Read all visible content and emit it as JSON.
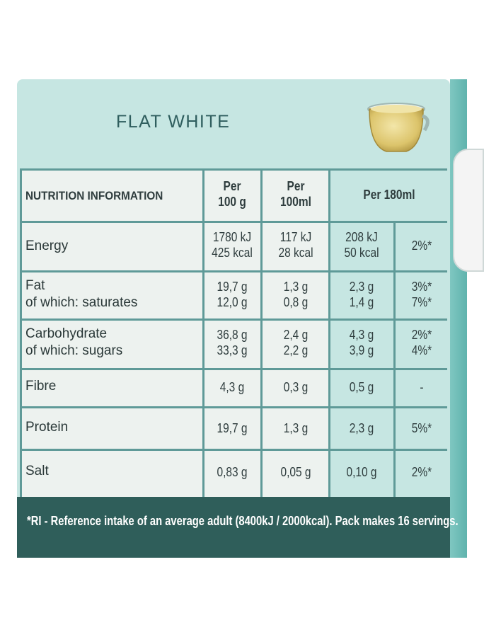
{
  "product": {
    "title": "FLAT WHITE"
  },
  "header": {
    "section": "NUTRITION INFORMATION",
    "col1": [
      "Per",
      "100 g"
    ],
    "col2": [
      "Per",
      "100ml"
    ],
    "col3": "Per 180ml"
  },
  "rows": [
    {
      "label": [
        "Energy"
      ],
      "per100g": [
        "1780 kJ",
        "425 kcal"
      ],
      "per100ml": [
        "117 kJ",
        "28 kcal"
      ],
      "per180ml": [
        "208 kJ",
        "50 kcal"
      ],
      "ri": [
        "2%*"
      ]
    },
    {
      "label": [
        "Fat",
        "of which: saturates"
      ],
      "per100g": [
        "19,7 g",
        "12,0 g"
      ],
      "per100ml": [
        "1,3 g",
        "0,8 g"
      ],
      "per180ml": [
        "2,3 g",
        "1,4 g"
      ],
      "ri": [
        "3%*",
        "7%*"
      ]
    },
    {
      "label": [
        "Carbohydrate",
        "of which: sugars"
      ],
      "per100g": [
        "36,8 g",
        "33,3 g"
      ],
      "per100ml": [
        "2,4 g",
        "2,2 g"
      ],
      "per180ml": [
        "4,3 g",
        "3,9 g"
      ],
      "ri": [
        "2%*",
        "4%*"
      ]
    },
    {
      "label": [
        "Fibre"
      ],
      "per100g": [
        "4,3 g"
      ],
      "per100ml": [
        "0,3 g"
      ],
      "per180ml": [
        "0,5 g"
      ],
      "ri": [
        "-"
      ]
    },
    {
      "label": [
        "Protein"
      ],
      "per100g": [
        "19,7 g"
      ],
      "per100ml": [
        "1,3 g"
      ],
      "per180ml": [
        "2,3 g"
      ],
      "ri": [
        "5%*"
      ]
    },
    {
      "label": [
        "Salt"
      ],
      "per100g": [
        "0,83 g"
      ],
      "per100ml": [
        "0,05 g"
      ],
      "per180ml": [
        "0,10 g"
      ],
      "ri": [
        "2%*"
      ]
    }
  ],
  "footer": {
    "note": "*RI - Reference intake of an average adult (8400kJ / 2000kcal). Pack makes 16 servings."
  },
  "colors": {
    "panel": "#c6e6e2",
    "table_bg": "#edf2ef",
    "lines": "#5f9a98",
    "footer": "#2f5e5a",
    "title": "#2f5e5e"
  },
  "icons": {
    "cup": "coffee-cup-icon"
  }
}
